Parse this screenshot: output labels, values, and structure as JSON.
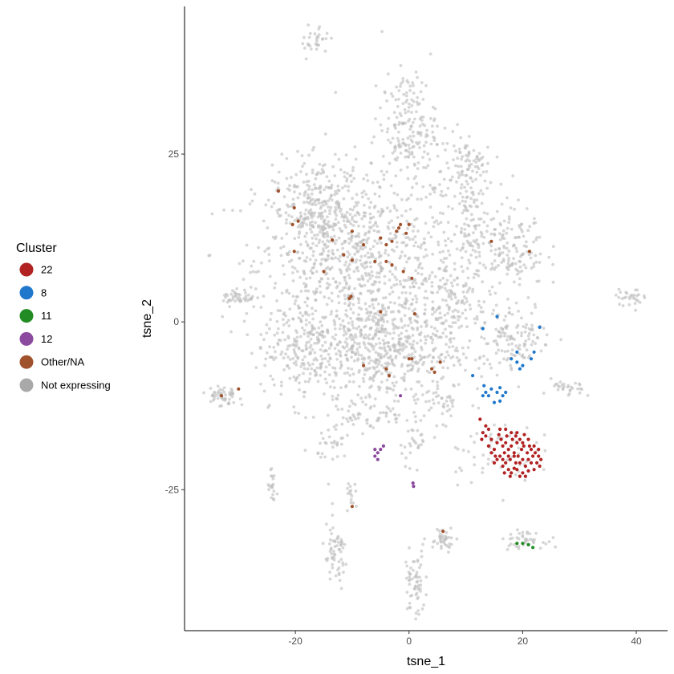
{
  "chart_data": {
    "type": "scatter",
    "xlabel": "tsne_1",
    "ylabel": "tsne_2",
    "xlim": [
      -39.5,
      45.5
    ],
    "ylim": [
      -46.0,
      47.0
    ],
    "x_ticks": [
      -20,
      0,
      20,
      40
    ],
    "y_ticks": [
      -25,
      0,
      25
    ],
    "grid": false,
    "legend": {
      "title": "Cluster",
      "position": "left",
      "entries": [
        {
          "label": "22",
          "color": "#b22222"
        },
        {
          "label": "8",
          "color": "#1f78cc"
        },
        {
          "label": "11",
          "color": "#238b23"
        },
        {
          "label": "12",
          "color": "#8b4a9e"
        },
        {
          "label": "Other/NA",
          "color": "#a0522d"
        },
        {
          "label": "Not expressing",
          "color": "#a9a9a9"
        }
      ]
    },
    "series": [
      {
        "name": "22",
        "color": "#b22222",
        "points": [
          [
            12.5,
            -14.5
          ],
          [
            13.5,
            -15.5
          ],
          [
            12.8,
            -17.5
          ],
          [
            13.5,
            -17
          ],
          [
            14,
            -18.5
          ],
          [
            14.5,
            -17.5
          ],
          [
            15,
            -19
          ],
          [
            15.5,
            -18
          ],
          [
            15.8,
            -16.8
          ],
          [
            16.2,
            -17.5
          ],
          [
            16.5,
            -18.5
          ],
          [
            16,
            -20
          ],
          [
            16.8,
            -19.5
          ],
          [
            17,
            -18
          ],
          [
            17.2,
            -17
          ],
          [
            17.5,
            -19
          ],
          [
            17.8,
            -20.5
          ],
          [
            18,
            -18.5
          ],
          [
            18.2,
            -17.5
          ],
          [
            18.5,
            -19.5
          ],
          [
            18.8,
            -21
          ],
          [
            19,
            -18
          ],
          [
            19.2,
            -20
          ],
          [
            19.5,
            -17.5
          ],
          [
            19.8,
            -19
          ],
          [
            20,
            -20.5
          ],
          [
            20.2,
            -18.5
          ],
          [
            20.5,
            -21.5
          ],
          [
            20.8,
            -19.5
          ],
          [
            21,
            -20.5
          ],
          [
            21.2,
            -18.5
          ],
          [
            21.5,
            -21
          ],
          [
            21.8,
            -20
          ],
          [
            22,
            -22
          ],
          [
            22.2,
            -19.5
          ],
          [
            22.5,
            -21
          ],
          [
            22.8,
            -20
          ],
          [
            23,
            -21.5
          ],
          [
            16.5,
            -21.5
          ],
          [
            17,
            -21
          ],
          [
            17.5,
            -22
          ],
          [
            18,
            -22.5
          ],
          [
            18.5,
            -21.8
          ],
          [
            19,
            -22
          ],
          [
            19.5,
            -23
          ],
          [
            20,
            -22.5
          ],
          [
            20.5,
            -23
          ],
          [
            21,
            -22.2
          ],
          [
            15.5,
            -20.5
          ],
          [
            15,
            -21
          ],
          [
            16,
            -16
          ],
          [
            17,
            -16
          ],
          [
            18,
            -16.5
          ],
          [
            19,
            -16.5
          ],
          [
            14,
            -16
          ],
          [
            13,
            -16.5
          ],
          [
            20,
            -18
          ],
          [
            21,
            -17.5
          ],
          [
            19.5,
            -21
          ],
          [
            18.5,
            -20
          ],
          [
            17.5,
            -20
          ],
          [
            16.5,
            -20.5
          ],
          [
            22,
            -18.5
          ],
          [
            22.8,
            -19
          ],
          [
            23.2,
            -20.5
          ],
          [
            14.5,
            -19.5
          ],
          [
            15.2,
            -20
          ],
          [
            18.8,
            -17
          ],
          [
            20.3,
            -16.8
          ],
          [
            21.5,
            -19
          ],
          [
            17.8,
            -23
          ],
          [
            16.8,
            -22.5
          ]
        ]
      },
      {
        "name": "8",
        "color": "#1f78cc",
        "points": [
          [
            13,
            -1
          ],
          [
            15.5,
            0.8
          ],
          [
            19,
            -4.5
          ],
          [
            22,
            -4.5
          ],
          [
            23,
            -0.8
          ],
          [
            18,
            -5.5
          ],
          [
            19,
            -6
          ],
          [
            19.5,
            -7
          ],
          [
            21.5,
            -5.5
          ],
          [
            20,
            -6.5
          ],
          [
            11.2,
            -8
          ],
          [
            13.2,
            -9.5
          ],
          [
            13.5,
            -10.5
          ],
          [
            14,
            -11
          ],
          [
            14.5,
            -10
          ],
          [
            15.5,
            -10.5
          ],
          [
            16,
            -9.8
          ],
          [
            16.5,
            -11
          ],
          [
            17,
            -10.5
          ],
          [
            16,
            -11.8
          ],
          [
            15,
            -12
          ],
          [
            13,
            -11
          ]
        ]
      },
      {
        "name": "11",
        "color": "#238b23",
        "points": [
          [
            19,
            -33
          ],
          [
            20,
            -33
          ],
          [
            21,
            -33.2
          ],
          [
            21.8,
            -33.6
          ]
        ]
      },
      {
        "name": "12",
        "color": "#8b4a9e",
        "points": [
          [
            -1.5,
            -11
          ],
          [
            -6,
            -20
          ],
          [
            -5.5,
            -19.5
          ],
          [
            -5,
            -19
          ],
          [
            -4.5,
            -18.5
          ],
          [
            -5.5,
            -20.5
          ],
          [
            -6,
            -19
          ],
          [
            0.8,
            -24.5
          ],
          [
            0.7,
            -24
          ]
        ]
      },
      {
        "name": "Other/NA",
        "color": "#a0522d",
        "points": [
          [
            -23,
            19.5
          ],
          [
            -20.2,
            17
          ],
          [
            -20.5,
            14.5
          ],
          [
            -19.5,
            15
          ],
          [
            -20.2,
            10.5
          ],
          [
            -13.5,
            12.2
          ],
          [
            -10,
            13.5
          ],
          [
            -8,
            11.5
          ],
          [
            -6,
            9
          ],
          [
            -4,
            9
          ],
          [
            -3,
            12
          ],
          [
            -1.8,
            14
          ],
          [
            -2.2,
            13.5
          ],
          [
            -1.5,
            14.5
          ],
          [
            -0.5,
            13.2
          ],
          [
            0,
            14.5
          ],
          [
            -4,
            11.5
          ],
          [
            -5,
            12.5
          ],
          [
            -3,
            8.5
          ],
          [
            -1,
            7.5
          ],
          [
            0.5,
            6.5
          ],
          [
            -10,
            9.2
          ],
          [
            -11.5,
            10
          ],
          [
            -15,
            7.5
          ],
          [
            -10.5,
            3.5
          ],
          [
            -10.2,
            3.8
          ],
          [
            -5,
            1.5
          ],
          [
            1,
            1.2
          ],
          [
            0,
            -5.5
          ],
          [
            0.5,
            -5.5
          ],
          [
            5.5,
            -6
          ],
          [
            4,
            -7
          ],
          [
            4.5,
            -7.5
          ],
          [
            -4,
            -7
          ],
          [
            -3.5,
            -8
          ],
          [
            -8,
            -6.5
          ],
          [
            -30,
            -10
          ],
          [
            -33,
            -11
          ],
          [
            14.5,
            12
          ],
          [
            21.2,
            10.5
          ],
          [
            -10,
            -27.5
          ],
          [
            6,
            -31.2
          ]
        ]
      }
    ]
  }
}
